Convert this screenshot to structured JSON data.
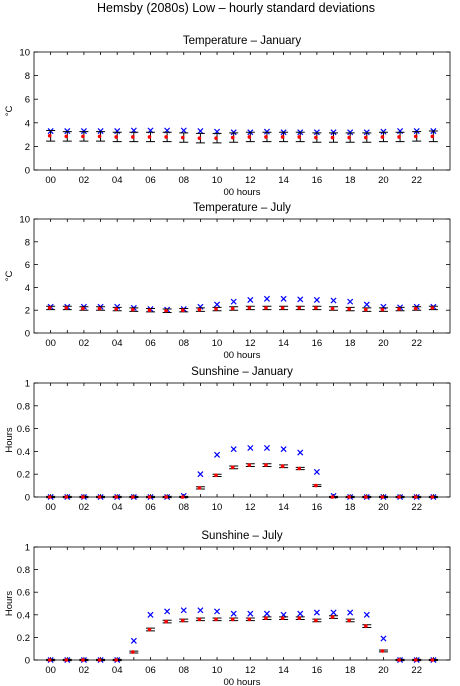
{
  "figure": {
    "title": "Hemsby (2080s) Low – hourly standard deviations"
  },
  "chart_data": [
    {
      "type": "scatter",
      "title": "Temperature – January",
      "xlabel": "00 hours",
      "ylabel": "°C",
      "ylim": [
        0,
        10
      ],
      "yticks": [
        "0",
        "2",
        "4",
        "6",
        "8",
        "10"
      ],
      "xlim": [
        -1,
        24
      ],
      "xticks": [
        "00",
        "02",
        "04",
        "06",
        "08",
        "10",
        "12",
        "14",
        "16",
        "18",
        "20",
        "22"
      ],
      "grid": false,
      "hours": [
        0,
        1,
        2,
        3,
        4,
        5,
        6,
        7,
        8,
        9,
        10,
        11,
        12,
        13,
        14,
        15,
        16,
        17,
        18,
        19,
        20,
        21,
        22,
        23
      ],
      "series": [
        {
          "color": "#0000ff",
          "marker": "x",
          "values": [
            3.3,
            3.3,
            3.3,
            3.3,
            3.3,
            3.35,
            3.35,
            3.35,
            3.35,
            3.3,
            3.25,
            3.2,
            3.2,
            3.25,
            3.2,
            3.2,
            3.2,
            3.2,
            3.2,
            3.2,
            3.25,
            3.3,
            3.3,
            3.3
          ]
        },
        {
          "color": "#ff0000",
          "marker": "dot",
          "values": [
            2.9,
            2.85,
            2.85,
            2.85,
            2.8,
            2.8,
            2.8,
            2.8,
            2.75,
            2.7,
            2.7,
            2.75,
            2.8,
            2.8,
            2.8,
            2.8,
            2.75,
            2.75,
            2.75,
            2.75,
            2.8,
            2.8,
            2.85,
            2.85
          ],
          "error": [
            0.45,
            0.4,
            0.4,
            0.4,
            0.4,
            0.4,
            0.4,
            0.4,
            0.4,
            0.4,
            0.4,
            0.4,
            0.4,
            0.4,
            0.4,
            0.4,
            0.4,
            0.4,
            0.4,
            0.4,
            0.4,
            0.4,
            0.4,
            0.45
          ],
          "error_color": "#000000"
        }
      ]
    },
    {
      "type": "scatter",
      "title": "Temperature – July",
      "xlabel": "00 hours",
      "ylabel": "°C",
      "ylim": [
        0,
        10
      ],
      "yticks": [
        "0",
        "2",
        "4",
        "6",
        "8",
        "10"
      ],
      "xlim": [
        -1,
        24
      ],
      "xticks": [
        "00",
        "02",
        "04",
        "06",
        "08",
        "10",
        "12",
        "14",
        "16",
        "18",
        "20",
        "22"
      ],
      "grid": false,
      "hours": [
        0,
        1,
        2,
        3,
        4,
        5,
        6,
        7,
        8,
        9,
        10,
        11,
        12,
        13,
        14,
        15,
        16,
        17,
        18,
        19,
        20,
        21,
        22,
        23
      ],
      "series": [
        {
          "color": "#0000ff",
          "marker": "x",
          "values": [
            2.3,
            2.3,
            2.3,
            2.3,
            2.3,
            2.2,
            2.1,
            2.05,
            2.1,
            2.3,
            2.5,
            2.75,
            2.9,
            3.0,
            3.0,
            2.95,
            2.9,
            2.85,
            2.75,
            2.5,
            2.3,
            2.25,
            2.3,
            2.3
          ]
        },
        {
          "color": "#ff0000",
          "marker": "dot",
          "values": [
            2.2,
            2.2,
            2.15,
            2.15,
            2.1,
            2.05,
            2.0,
            1.95,
            2.0,
            2.05,
            2.1,
            2.15,
            2.2,
            2.2,
            2.2,
            2.2,
            2.2,
            2.15,
            2.1,
            2.05,
            2.05,
            2.1,
            2.15,
            2.2
          ],
          "error": [
            0.15,
            0.15,
            0.15,
            0.15,
            0.15,
            0.15,
            0.15,
            0.15,
            0.15,
            0.15,
            0.15,
            0.15,
            0.15,
            0.15,
            0.15,
            0.15,
            0.15,
            0.15,
            0.15,
            0.15,
            0.15,
            0.15,
            0.15,
            0.15
          ],
          "error_color": "#000000"
        }
      ]
    },
    {
      "type": "scatter",
      "title": "Sunshine – January",
      "xlabel": "",
      "ylabel": "Hours",
      "ylim": [
        0,
        1
      ],
      "yticks": [
        "0",
        "0.2",
        "0.4",
        "0.6",
        "0.8",
        "1"
      ],
      "xlim": [
        -1,
        24
      ],
      "xticks": [
        "00",
        "02",
        "04",
        "06",
        "08",
        "10",
        "12",
        "14",
        "16",
        "18",
        "20",
        "22"
      ],
      "grid": false,
      "hours": [
        0,
        1,
        2,
        3,
        4,
        5,
        6,
        7,
        8,
        9,
        10,
        11,
        12,
        13,
        14,
        15,
        16,
        17,
        18,
        19,
        20,
        21,
        22,
        23
      ],
      "series": [
        {
          "color": "#0000ff",
          "marker": "x",
          "values": [
            0.0,
            0.0,
            0.0,
            0.0,
            0.0,
            0.0,
            0.0,
            0.0,
            0.01,
            0.2,
            0.37,
            0.42,
            0.43,
            0.43,
            0.42,
            0.39,
            0.22,
            0.01,
            0.0,
            0.0,
            0.0,
            0.0,
            0.0,
            0.0
          ]
        },
        {
          "color": "#ff0000",
          "marker": "dot",
          "values": [
            0.0,
            0.0,
            0.0,
            0.0,
            0.0,
            0.0,
            0.0,
            0.0,
            0.0,
            0.08,
            0.19,
            0.26,
            0.28,
            0.28,
            0.27,
            0.25,
            0.1,
            0.0,
            0.0,
            0.0,
            0.0,
            0.0,
            0.0,
            0.0
          ],
          "error": [
            0.005,
            0.005,
            0.005,
            0.005,
            0.005,
            0.005,
            0.005,
            0.005,
            0.005,
            0.01,
            0.01,
            0.012,
            0.012,
            0.012,
            0.012,
            0.01,
            0.008,
            0.005,
            0.005,
            0.005,
            0.005,
            0.005,
            0.005,
            0.005
          ],
          "error_color": "#000000"
        }
      ]
    },
    {
      "type": "scatter",
      "title": "Sunshine – July",
      "xlabel": "00 hours",
      "ylabel": "Hours",
      "ylim": [
        0,
        1
      ],
      "yticks": [
        "0",
        "0.2",
        "0.4",
        "0.6",
        "0.8",
        "1"
      ],
      "xlim": [
        -1,
        24
      ],
      "xticks": [
        "00",
        "02",
        "04",
        "06",
        "08",
        "10",
        "12",
        "14",
        "16",
        "18",
        "20",
        "22"
      ],
      "grid": false,
      "hours": [
        0,
        1,
        2,
        3,
        4,
        5,
        6,
        7,
        8,
        9,
        10,
        11,
        12,
        13,
        14,
        15,
        16,
        17,
        18,
        19,
        20,
        21,
        22,
        23
      ],
      "series": [
        {
          "color": "#0000ff",
          "marker": "x",
          "values": [
            0.0,
            0.0,
            0.0,
            0.0,
            0.0,
            0.17,
            0.4,
            0.43,
            0.44,
            0.44,
            0.43,
            0.41,
            0.41,
            0.41,
            0.4,
            0.41,
            0.42,
            0.42,
            0.42,
            0.4,
            0.19,
            0.0,
            0.0,
            0.0
          ]
        },
        {
          "color": "#ff0000",
          "marker": "dot",
          "values": [
            0.0,
            0.0,
            0.0,
            0.0,
            0.0,
            0.07,
            0.27,
            0.34,
            0.35,
            0.36,
            0.36,
            0.36,
            0.36,
            0.37,
            0.37,
            0.37,
            0.35,
            0.38,
            0.35,
            0.3,
            0.08,
            0.0,
            0.0,
            0.0
          ],
          "error": [
            0.005,
            0.005,
            0.005,
            0.005,
            0.005,
            0.008,
            0.012,
            0.012,
            0.012,
            0.012,
            0.012,
            0.012,
            0.012,
            0.012,
            0.012,
            0.012,
            0.012,
            0.012,
            0.012,
            0.012,
            0.008,
            0.005,
            0.005,
            0.005
          ],
          "error_color": "#000000"
        }
      ]
    }
  ]
}
